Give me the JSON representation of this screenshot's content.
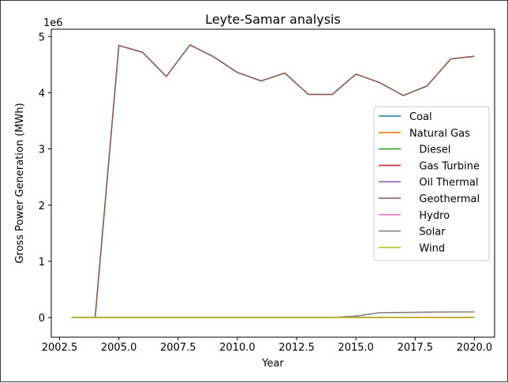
{
  "chart_data": {
    "type": "line",
    "title": "Leyte-Samar analysis",
    "xlabel": "Year",
    "ylabel": "Gross Power Generation (MWh)",
    "y_offset_label": "1e6",
    "xlim": [
      2002.15,
      2020.85
    ],
    "ylim": [
      -350000,
      5130000
    ],
    "x_ticks": [
      2002.5,
      2005.0,
      2007.5,
      2010.0,
      2012.5,
      2015.0,
      2017.5,
      2020.0
    ],
    "x_tick_labels": [
      "2002.5",
      "2005.0",
      "2007.5",
      "2010.0",
      "2012.5",
      "2015.0",
      "2017.5",
      "2020.0"
    ],
    "y_ticks": [
      0,
      1000000,
      2000000,
      3000000,
      4000000,
      5000000
    ],
    "y_tick_labels": [
      "0",
      "1",
      "2",
      "3",
      "4",
      "5"
    ],
    "legend_position": "center-right",
    "x": [
      2003,
      2004,
      2005,
      2006,
      2007,
      2008,
      2009,
      2010,
      2011,
      2012,
      2013,
      2014,
      2015,
      2016,
      2017,
      2018,
      2019,
      2020
    ],
    "series": [
      {
        "name": "Coal",
        "color": "#1f77b4",
        "values": [
          0,
          0,
          0,
          0,
          0,
          0,
          0,
          0,
          0,
          0,
          0,
          0,
          0,
          0,
          0,
          0,
          0,
          0
        ]
      },
      {
        "name": "Natural Gas",
        "color": "#ff7f0e",
        "values": [
          0,
          0,
          0,
          0,
          0,
          0,
          0,
          0,
          0,
          0,
          0,
          0,
          0,
          0,
          0,
          0,
          0,
          0
        ]
      },
      {
        "name": "   Diesel",
        "color": "#2ca02c",
        "values": [
          0,
          0,
          0,
          0,
          0,
          0,
          0,
          0,
          0,
          0,
          0,
          0,
          0,
          0,
          0,
          0,
          0,
          0
        ]
      },
      {
        "name": "   Gas Turbine",
        "color": "#d62728",
        "values": [
          0,
          0,
          0,
          0,
          0,
          0,
          0,
          0,
          0,
          0,
          0,
          0,
          0,
          0,
          0,
          0,
          0,
          0
        ]
      },
      {
        "name": "   Oil Thermal",
        "color": "#9467bd",
        "values": [
          0,
          0,
          0,
          0,
          0,
          0,
          0,
          0,
          0,
          0,
          0,
          0,
          0,
          0,
          0,
          0,
          0,
          0
        ]
      },
      {
        "name": "   Geothermal",
        "color": "#8c564b",
        "values": [
          0,
          0,
          4840000,
          4720000,
          4290000,
          4850000,
          4640000,
          4360000,
          4210000,
          4350000,
          3970000,
          3970000,
          4330000,
          4180000,
          3950000,
          4120000,
          4600000,
          4650000
        ]
      },
      {
        "name": "   Hydro",
        "color": "#e377c2",
        "values": [
          0,
          0,
          0,
          0,
          0,
          0,
          0,
          0,
          0,
          0,
          0,
          0,
          0,
          0,
          0,
          0,
          0,
          0
        ]
      },
      {
        "name": "   Solar",
        "color": "#7f7f7f",
        "values": [
          0,
          0,
          0,
          0,
          0,
          0,
          0,
          0,
          0,
          0,
          0,
          0,
          25000,
          85000,
          90000,
          95000,
          100000,
          100000
        ]
      },
      {
        "name": "   Wind",
        "color": "#bcbd22",
        "values": [
          0,
          0,
          0,
          0,
          0,
          0,
          0,
          0,
          0,
          0,
          0,
          0,
          0,
          0,
          0,
          0,
          0,
          0
        ]
      }
    ]
  }
}
